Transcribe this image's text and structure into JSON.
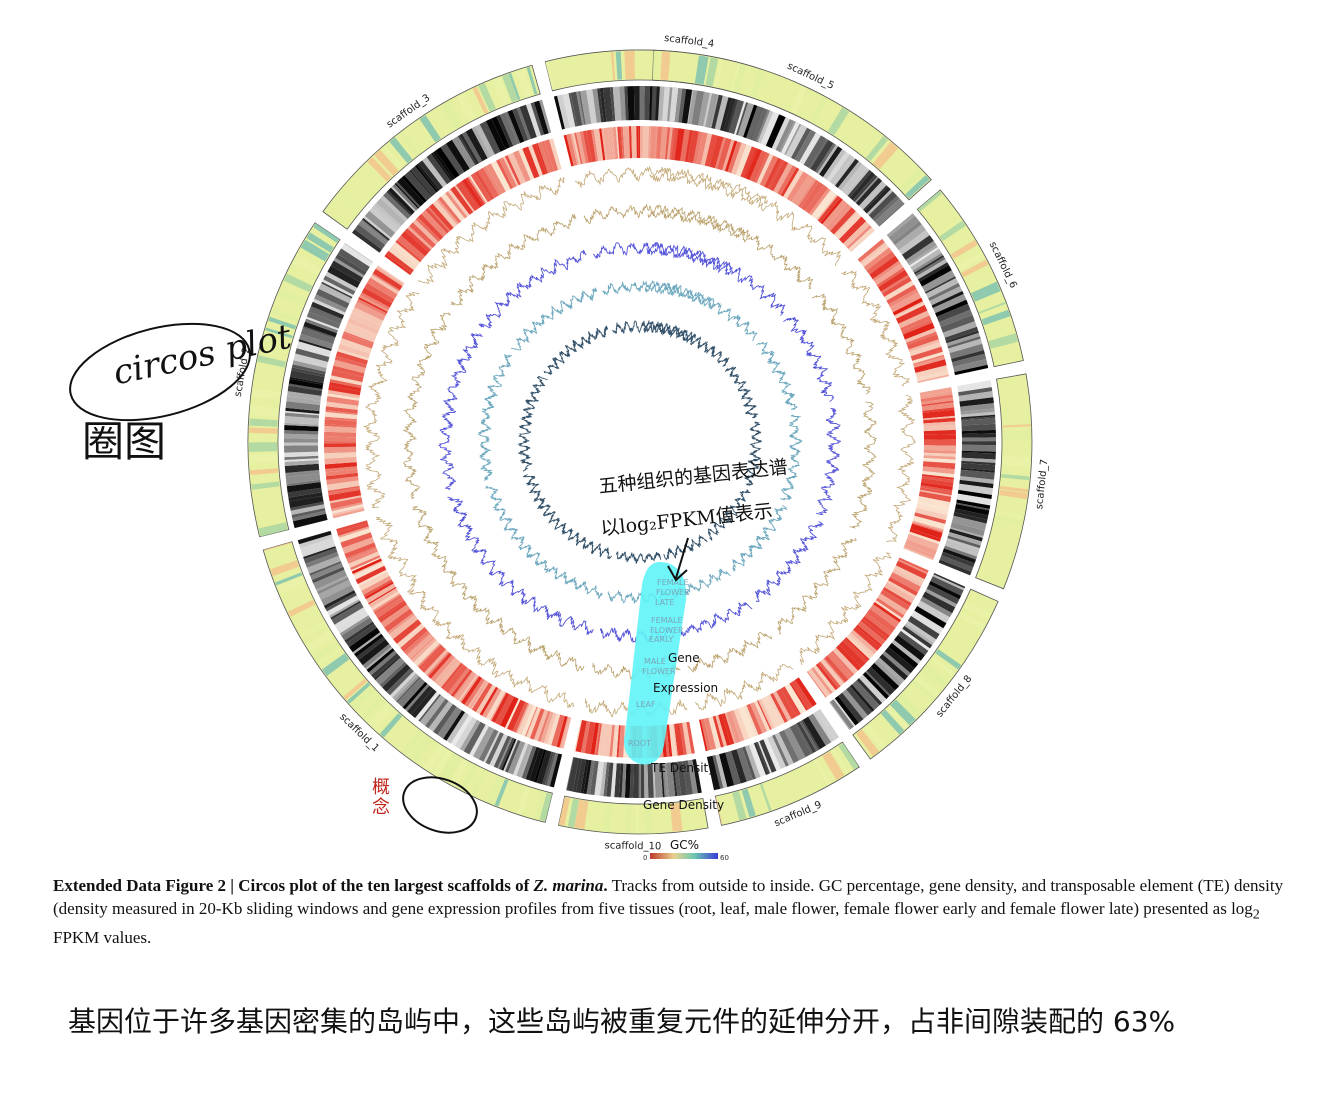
{
  "chart_data": {
    "type": "circos",
    "scaffolds": [
      "scaffold_1",
      "scaffold_2",
      "scaffold_3",
      "scaffold_4",
      "scaffold_5",
      "scaffold_6",
      "scaffold_7",
      "scaffold_8",
      "scaffold_9",
      "scaffold_10"
    ],
    "tracks_outside_to_inside": [
      "GC%",
      "Gene Density",
      "TE Density",
      "ROOT",
      "LEAF",
      "MALE FLOWER",
      "FEMALE FLOWER EARLY",
      "FEMALE FLOWER LATE"
    ],
    "track_labels": {
      "gene": "Gene",
      "expression": "Expression",
      "te_density": "TE Density",
      "gene_density": "Gene Density",
      "root": "ROOT",
      "leaf": "LEAF",
      "male_1": "MALE",
      "male_2": "FLOWER",
      "fe_1": "FEMALE",
      "fe_2": "FLOWER",
      "fe_3": "EARLY",
      "fl_1": "FEMALE",
      "fl_2": "FLOWER",
      "fl_3": "LATE"
    },
    "legend": {
      "title": "GC%",
      "min_label": "0",
      "max_label": "60",
      "colors": [
        "#c0392b",
        "#e8d28a",
        "#6dc7b5",
        "#3b3bd6"
      ]
    },
    "track_colors": {
      "gc_base": "#e6f0a0",
      "gene_density": "#222222",
      "te_density": "#c23323",
      "root": "#c4a978",
      "leaf": "#b9a06a",
      "male_flower": "#5454d8",
      "female_flower_early": "#6fa9bf",
      "female_flower_late": "#34526a"
    }
  },
  "annotations": {
    "circos_plot": "circos plot",
    "tuan_tu": "圈图",
    "expression_note_1": "五种组织的基因表达谱",
    "expression_note_2": "以log₂FPKM值表示",
    "scaffold_note": "概念"
  },
  "caption": {
    "lead": "Extended Data Figure 2 | Circos plot of the ten largest scaffolds of ",
    "species": "Z. marina",
    "lead_end": ".",
    "body": " Tracks from outside to inside. GC percentage, gene density, and transposable element (TE) density (density measured in 20-Kb sliding windows and gene expression profiles from five tissues (root, leaf, male flower, female flower early and female flower late) presented as log",
    "sub": "2",
    "tail": " FPKM values."
  },
  "note_cn": "基因位于许多基因密集的岛屿中，这些岛屿被重复元件的延伸分开，占非间隙装配的 63%"
}
